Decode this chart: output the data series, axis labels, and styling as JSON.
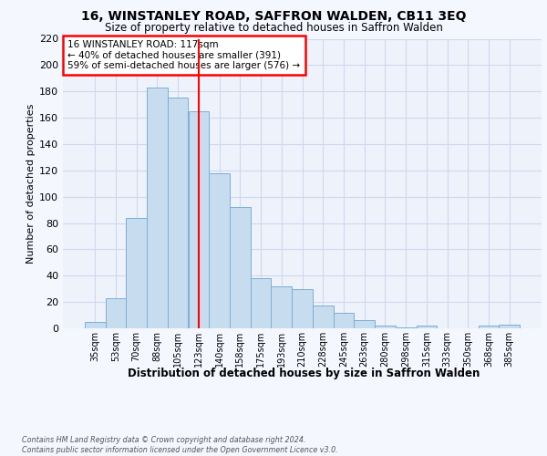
{
  "title": "16, WINSTANLEY ROAD, SAFFRON WALDEN, CB11 3EQ",
  "subtitle": "Size of property relative to detached houses in Saffron Walden",
  "xlabel": "Distribution of detached houses by size in Saffron Walden",
  "ylabel": "Number of detached properties",
  "categories": [
    "35sqm",
    "53sqm",
    "70sqm",
    "88sqm",
    "105sqm",
    "123sqm",
    "140sqm",
    "158sqm",
    "175sqm",
    "193sqm",
    "210sqm",
    "228sqm",
    "245sqm",
    "263sqm",
    "280sqm",
    "298sqm",
    "315sqm",
    "333sqm",
    "350sqm",
    "368sqm",
    "385sqm"
  ],
  "values": [
    5,
    23,
    84,
    183,
    175,
    165,
    118,
    92,
    38,
    32,
    30,
    17,
    12,
    6,
    2,
    1,
    2,
    0,
    0,
    2,
    3
  ],
  "bar_color": "#c8dcf0",
  "bar_edge_color": "#7aafd4",
  "vline_x": 5,
  "vline_color": "red",
  "annotation_box_text": "16 WINSTANLEY ROAD: 117sqm\n← 40% of detached houses are smaller (391)\n59% of semi-detached houses are larger (576) →",
  "annotation_box_color": "red",
  "annotation_box_bg": "white",
  "ylim": [
    0,
    220
  ],
  "yticks": [
    0,
    20,
    40,
    60,
    80,
    100,
    120,
    140,
    160,
    180,
    200,
    220
  ],
  "footer": "Contains HM Land Registry data © Crown copyright and database right 2024.\nContains public sector information licensed under the Open Government Licence v3.0.",
  "bg_color": "#eef2fb",
  "grid_color": "#d0d8ee",
  "fig_bg_color": "#f5f7ff"
}
